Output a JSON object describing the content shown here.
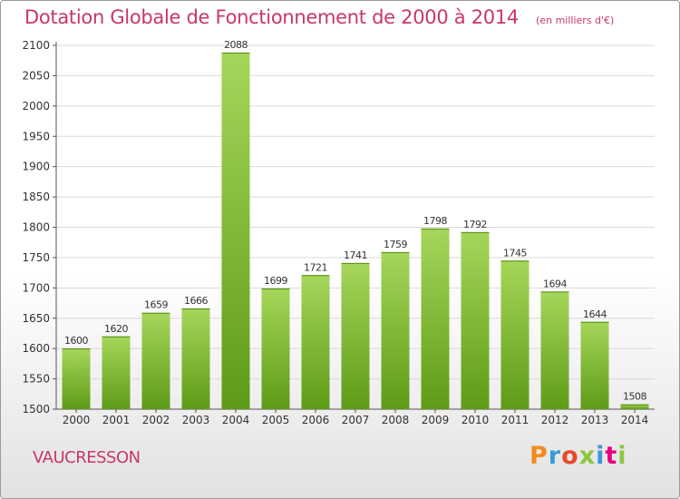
{
  "header": {
    "title": "Dotation Globale de Fonctionnement de 2000 à 2014",
    "unit_note": "(en milliers d'€)"
  },
  "footer": {
    "commune": "VAUCRESSON",
    "brand": "Proxiti",
    "brand_colors": [
      "#f28c1e",
      "#3a9ad9",
      "#e64b2e",
      "#8cc63f",
      "#3a9ad9",
      "#e6007e",
      "#8cc63f"
    ]
  },
  "colors": {
    "bar_top": "#a6d65a",
    "bar_bottom": "#5e9b17",
    "accent": "#c8366b",
    "grid": "#d9d9d9",
    "axis": "#555555"
  },
  "chart_data": {
    "type": "bar",
    "title": "Dotation Globale de Fonctionnement de 2000 à 2014",
    "subtitle": "(en milliers d'€)",
    "xlabel": "",
    "ylabel": "",
    "categories": [
      "2000",
      "2001",
      "2002",
      "2003",
      "2004",
      "2005",
      "2006",
      "2007",
      "2008",
      "2009",
      "2010",
      "2011",
      "2012",
      "2013",
      "2014"
    ],
    "values": [
      1600,
      1620,
      1659,
      1666,
      2088,
      1699,
      1721,
      1741,
      1759,
      1798,
      1792,
      1745,
      1694,
      1644,
      1508
    ],
    "ylim": [
      1500,
      2100
    ],
    "yticks": [
      1500,
      1550,
      1600,
      1650,
      1700,
      1750,
      1800,
      1850,
      1900,
      1950,
      2000,
      2050,
      2100
    ],
    "grid": true,
    "data_labels": true
  }
}
